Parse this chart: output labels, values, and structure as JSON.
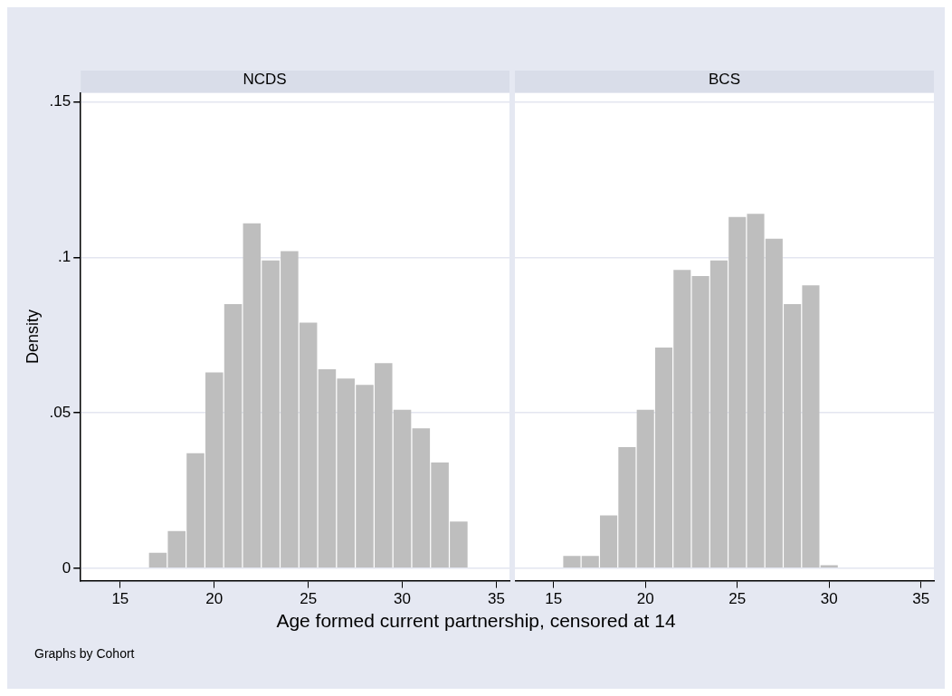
{
  "chart_data": [
    {
      "type": "histogram",
      "title": "NCDS",
      "ylabel": "Density",
      "xlabel": "Age formed current partnership, censored at 14",
      "annotations": [
        "Graphs by Cohort"
      ],
      "color": "#bebebe",
      "bins": [
        15.5,
        16.5,
        17.5,
        18.5,
        19.5,
        20.5,
        21.5,
        22.5,
        23.5,
        24.5,
        25.5,
        26.5,
        27.5,
        28.5,
        29.5,
        30.5,
        31.5,
        32.5,
        33.5
      ],
      "values": [
        0,
        0.005,
        0.012,
        0.037,
        0.063,
        0.085,
        0.111,
        0.099,
        0.102,
        0.079,
        0.064,
        0.061,
        0.059,
        0.066,
        0.051,
        0.045,
        0.034,
        0.015
      ],
      "xlim": [
        12.9,
        35.7
      ],
      "xticks": [
        15,
        20,
        25,
        30,
        35
      ],
      "ylim": [
        -0.004,
        0.153
      ],
      "yticks": [
        {
          "value": 0,
          "label": "0"
        },
        {
          "value": 0.05,
          "label": ".05"
        },
        {
          "value": 0.1,
          "label": ".1"
        },
        {
          "value": 0.15,
          "label": ".15"
        }
      ],
      "grid": "y",
      "legend": false
    },
    {
      "type": "histogram",
      "title": "BCS",
      "color": "#bebebe",
      "bins": [
        13.5,
        14.5,
        15.5,
        16.5,
        17.5,
        18.5,
        19.5,
        20.5,
        21.5,
        22.5,
        23.5,
        24.5,
        25.5,
        26.5,
        27.5,
        28.5,
        29.5,
        30.5
      ],
      "values": [
        0,
        0,
        0.004,
        0.004,
        0.017,
        0.039,
        0.051,
        0.071,
        0.096,
        0.094,
        0.099,
        0.113,
        0.114,
        0.106,
        0.085,
        0.091,
        0.001
      ],
      "xlim": [
        12.9,
        35.7
      ],
      "xticks": [
        15,
        20,
        25,
        30,
        35
      ],
      "ylim": [
        -0.004,
        0.153
      ],
      "yticks": [
        {
          "value": 0,
          "label": null
        },
        {
          "value": 0.05,
          "label": null
        },
        {
          "value": 0.1,
          "label": null
        },
        {
          "value": 0.15,
          "label": null
        }
      ],
      "grid": "y",
      "legend": false,
      "tick_labels": "x"
    }
  ]
}
